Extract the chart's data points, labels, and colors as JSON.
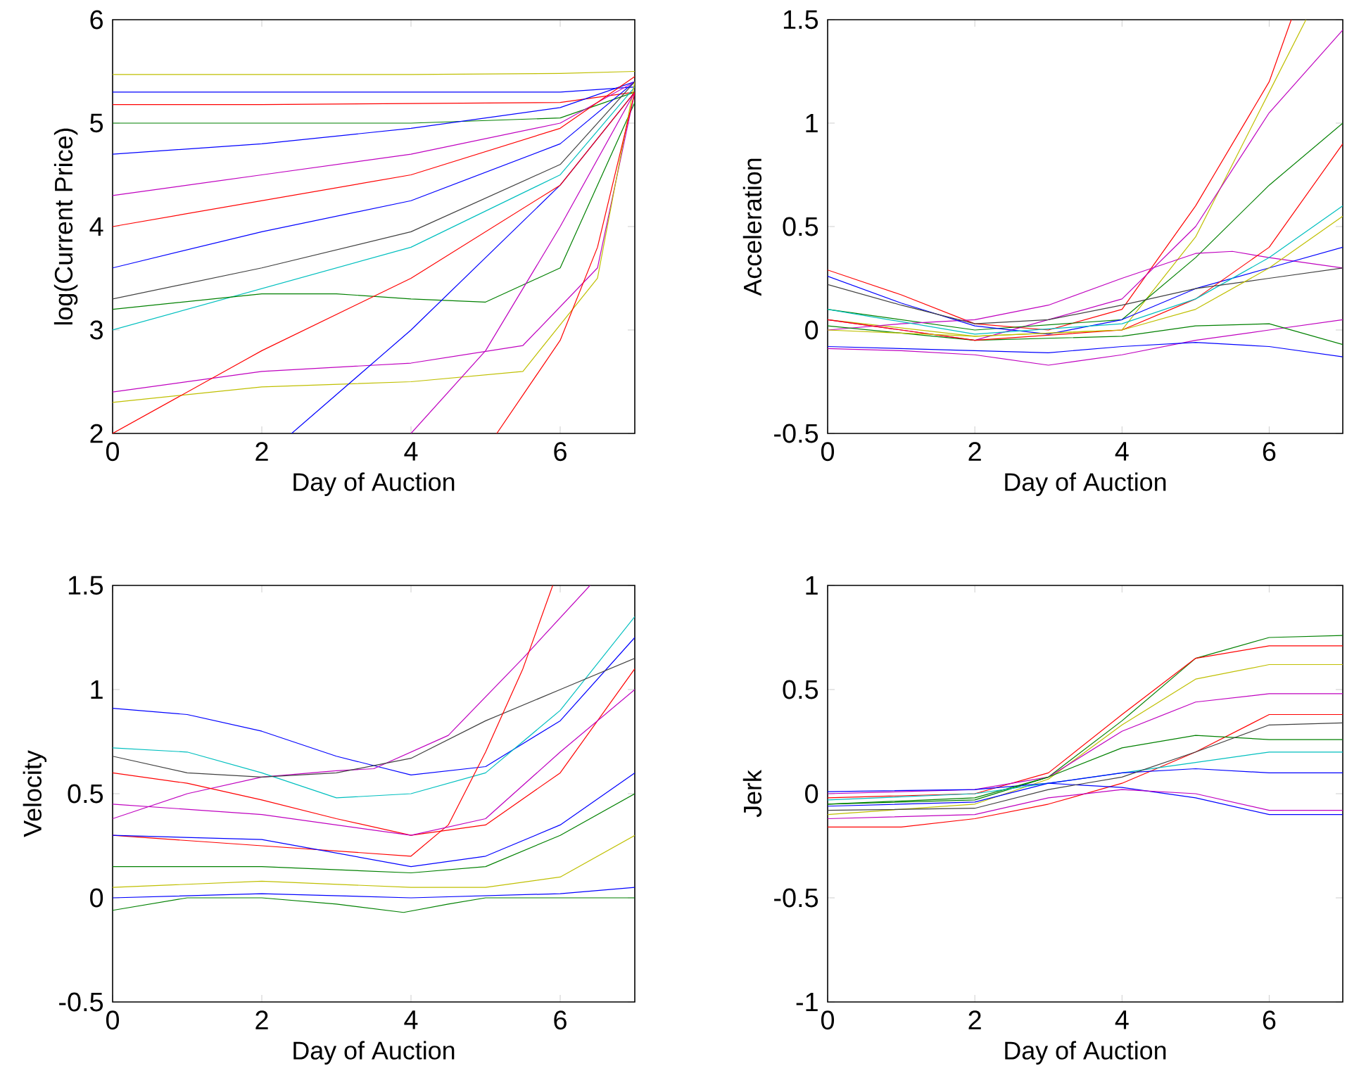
{
  "chart_data": [
    {
      "type": "line",
      "xlabel": "Day of Auction",
      "ylabel": "log(Current Price)",
      "xlim": [
        0,
        7
      ],
      "ylim": [
        2,
        6
      ],
      "xticks": [
        0,
        2,
        4,
        6
      ],
      "yticks": [
        2,
        3,
        4,
        5,
        6
      ],
      "series": [
        {
          "color": "#bfbf00",
          "x": [
            0,
            2,
            4,
            6,
            7
          ],
          "values": [
            5.47,
            5.47,
            5.47,
            5.48,
            5.5
          ]
        },
        {
          "color": "#0000ff",
          "x": [
            0,
            2,
            4,
            6,
            7
          ],
          "values": [
            5.3,
            5.3,
            5.3,
            5.3,
            5.35
          ]
        },
        {
          "color": "#ff0000",
          "x": [
            0,
            2,
            4,
            6,
            7
          ],
          "values": [
            5.18,
            5.18,
            5.19,
            5.2,
            5.3
          ]
        },
        {
          "color": "#008000",
          "x": [
            0,
            2,
            4,
            6,
            7
          ],
          "values": [
            5.0,
            5.0,
            5.0,
            5.05,
            5.3
          ]
        },
        {
          "color": "#0000ff",
          "x": [
            0,
            2,
            4,
            6,
            7
          ],
          "values": [
            4.7,
            4.8,
            4.95,
            5.15,
            5.4
          ]
        },
        {
          "color": "#bf00bf",
          "x": [
            0,
            2,
            4,
            6,
            7
          ],
          "values": [
            4.3,
            4.5,
            4.7,
            5.0,
            5.4
          ]
        },
        {
          "color": "#ff0000",
          "x": [
            0,
            2,
            4,
            6,
            7
          ],
          "values": [
            4.0,
            4.25,
            4.5,
            4.95,
            5.45
          ]
        },
        {
          "color": "#0000ff",
          "x": [
            0,
            2,
            4,
            6,
            7
          ],
          "values": [
            3.6,
            3.95,
            4.25,
            4.8,
            5.4
          ]
        },
        {
          "color": "#404040",
          "x": [
            0,
            2,
            4,
            6,
            7
          ],
          "values": [
            3.3,
            3.6,
            3.95,
            4.6,
            5.4
          ]
        },
        {
          "color": "#00bfbf",
          "x": [
            0,
            2,
            4,
            6,
            7
          ],
          "values": [
            3.0,
            3.4,
            3.8,
            4.5,
            5.35
          ]
        },
        {
          "color": "#008000",
          "x": [
            0,
            2,
            3,
            4,
            5,
            6,
            7
          ],
          "values": [
            3.2,
            3.35,
            3.35,
            3.3,
            3.27,
            3.6,
            5.2
          ]
        },
        {
          "color": "#bf00bf",
          "x": [
            0,
            2,
            4,
            5.5,
            6.5,
            7
          ],
          "values": [
            2.4,
            2.6,
            2.68,
            2.85,
            3.6,
            5.3
          ]
        },
        {
          "color": "#bfbf00",
          "x": [
            0,
            2,
            4,
            5.5,
            6.5,
            7
          ],
          "values": [
            2.3,
            2.45,
            2.5,
            2.6,
            3.5,
            5.4
          ]
        },
        {
          "color": "#ff0000",
          "x": [
            5.15,
            6,
            6.5,
            7
          ],
          "values": [
            2.0,
            2.9,
            3.8,
            5.3
          ]
        },
        {
          "color": "#0000ff",
          "x": [
            2.4,
            4,
            6,
            7
          ],
          "values": [
            2.0,
            3.0,
            4.4,
            5.3
          ]
        },
        {
          "color": "#bf00bf",
          "x": [
            4,
            5,
            6,
            7
          ],
          "values": [
            2.0,
            2.8,
            4.0,
            5.3
          ]
        },
        {
          "color": "#ff0000",
          "x": [
            0,
            2,
            4,
            6,
            7
          ],
          "values": [
            2.0,
            2.8,
            3.5,
            4.4,
            5.3
          ]
        }
      ]
    },
    {
      "type": "line",
      "xlabel": "Day of Auction",
      "ylabel": "Acceleration",
      "xlim": [
        0,
        7
      ],
      "ylim": [
        -0.5,
        1.5
      ],
      "xticks": [
        0,
        2,
        4,
        6
      ],
      "yticks": [
        -0.5,
        0,
        0.5,
        1,
        1.5
      ],
      "series": [
        {
          "color": "#ff0000",
          "x": [
            0,
            1,
            2,
            3,
            4,
            5,
            6,
            6.3
          ],
          "values": [
            0.29,
            0.17,
            0.03,
            0.0,
            0.1,
            0.6,
            1.2,
            1.5
          ]
        },
        {
          "color": "#bfbf00",
          "x": [
            0,
            2,
            4,
            5,
            6,
            6.5
          ],
          "values": [
            0.05,
            -0.03,
            0.0,
            0.45,
            1.15,
            1.5
          ]
        },
        {
          "color": "#bf00bf",
          "x": [
            0,
            2,
            4,
            5,
            6,
            7
          ],
          "values": [
            0.05,
            -0.05,
            0.15,
            0.5,
            1.05,
            1.45
          ]
        },
        {
          "color": "#008000",
          "x": [
            0,
            2,
            4,
            5,
            6,
            7
          ],
          "values": [
            0.1,
            0.0,
            0.05,
            0.35,
            0.7,
            1.0
          ]
        },
        {
          "color": "#bf00bf",
          "x": [
            0,
            1,
            2,
            3,
            4,
            5,
            5.5,
            6,
            7
          ],
          "values": [
            0.0,
            0.03,
            0.05,
            0.12,
            0.25,
            0.37,
            0.38,
            0.35,
            0.3
          ]
        },
        {
          "color": "#0000ff",
          "x": [
            0,
            1,
            2,
            3,
            4,
            5,
            6,
            7
          ],
          "values": [
            0.26,
            0.13,
            0.02,
            -0.02,
            0.05,
            0.2,
            0.3,
            0.4
          ]
        },
        {
          "color": "#bf00bf",
          "x": [
            0,
            1,
            2,
            3,
            4,
            5,
            6,
            7
          ],
          "values": [
            -0.09,
            -0.1,
            -0.12,
            -0.17,
            -0.12,
            -0.05,
            0.0,
            0.05
          ]
        },
        {
          "color": "#0000ff",
          "x": [
            0,
            2,
            3,
            4,
            5,
            6,
            7
          ],
          "values": [
            -0.08,
            -0.1,
            -0.11,
            -0.08,
            -0.06,
            -0.08,
            -0.13
          ]
        },
        {
          "color": "#008000",
          "x": [
            0,
            2,
            4,
            5,
            6,
            7
          ],
          "values": [
            0.02,
            -0.05,
            -0.03,
            0.02,
            0.03,
            -0.07
          ]
        },
        {
          "color": "#ff0000",
          "x": [
            0,
            2,
            4,
            5,
            6,
            7
          ],
          "values": [
            0.05,
            -0.05,
            0.0,
            0.15,
            0.4,
            0.9
          ]
        },
        {
          "color": "#00bfbf",
          "x": [
            0,
            2,
            4,
            5,
            6,
            7
          ],
          "values": [
            0.1,
            -0.02,
            0.03,
            0.15,
            0.35,
            0.6
          ]
        },
        {
          "color": "#404040",
          "x": [
            0,
            1,
            2,
            3,
            4,
            5,
            6,
            7
          ],
          "values": [
            0.22,
            0.12,
            0.03,
            0.05,
            0.12,
            0.2,
            0.25,
            0.3
          ]
        },
        {
          "color": "#bfbf00",
          "x": [
            0,
            2,
            4,
            5,
            6,
            7
          ],
          "values": [
            0.0,
            -0.03,
            0.0,
            0.1,
            0.3,
            0.55
          ]
        }
      ]
    },
    {
      "type": "line",
      "xlabel": "Day of Auction",
      "ylabel": "Velocity",
      "xlim": [
        0,
        7
      ],
      "ylim": [
        -0.5,
        1.5
      ],
      "xticks": [
        0,
        2,
        4,
        6
      ],
      "yticks": [
        -0.5,
        0,
        0.5,
        1,
        1.5
      ],
      "series": [
        {
          "color": "#0000ff",
          "x": [
            0,
            1,
            2,
            3,
            4,
            5,
            6,
            7
          ],
          "values": [
            0.91,
            0.88,
            0.8,
            0.68,
            0.59,
            0.63,
            0.85,
            1.25
          ]
        },
        {
          "color": "#bf00bf",
          "x": [
            0,
            1,
            2,
            3,
            3.5,
            4.5,
            5.5,
            6.4
          ],
          "values": [
            0.38,
            0.5,
            0.58,
            0.61,
            0.62,
            0.78,
            1.15,
            1.5
          ]
        },
        {
          "color": "#00bfbf",
          "x": [
            0,
            1,
            2,
            3,
            4,
            5,
            6,
            7
          ],
          "values": [
            0.72,
            0.7,
            0.6,
            0.48,
            0.5,
            0.6,
            0.9,
            1.35
          ]
        },
        {
          "color": "#404040",
          "x": [
            0,
            1,
            2,
            3,
            4,
            5,
            6,
            7
          ],
          "values": [
            0.68,
            0.6,
            0.58,
            0.6,
            0.67,
            0.85,
            1.0,
            1.15
          ]
        },
        {
          "color": "#ff0000",
          "x": [
            0,
            1,
            2,
            3,
            4,
            5,
            6,
            7
          ],
          "values": [
            0.6,
            0.55,
            0.47,
            0.38,
            0.3,
            0.35,
            0.6,
            1.1
          ]
        },
        {
          "color": "#ff0000",
          "x": [
            0,
            2,
            4,
            4.5,
            5,
            5.5,
            5.9
          ],
          "values": [
            0.3,
            0.25,
            0.2,
            0.35,
            0.7,
            1.1,
            1.5
          ]
        },
        {
          "color": "#008000",
          "x": [
            0,
            1,
            2,
            3,
            3.9,
            4.5,
            5,
            6,
            7
          ],
          "values": [
            -0.06,
            0.0,
            0.0,
            -0.03,
            -0.07,
            -0.03,
            0.0,
            0.0,
            0.0
          ]
        },
        {
          "color": "#0000ff",
          "x": [
            0,
            2,
            4,
            5,
            6,
            7
          ],
          "values": [
            0.3,
            0.28,
            0.15,
            0.2,
            0.35,
            0.6
          ]
        },
        {
          "color": "#008000",
          "x": [
            0,
            2,
            4,
            5,
            6,
            7
          ],
          "values": [
            0.15,
            0.15,
            0.12,
            0.15,
            0.3,
            0.5
          ]
        },
        {
          "color": "#bfbf00",
          "x": [
            0,
            2,
            4,
            5,
            6,
            7
          ],
          "values": [
            0.05,
            0.08,
            0.05,
            0.05,
            0.1,
            0.3
          ]
        },
        {
          "color": "#bf00bf",
          "x": [
            0,
            2,
            4,
            5,
            6,
            7
          ],
          "values": [
            0.45,
            0.4,
            0.3,
            0.38,
            0.7,
            1.0
          ]
        },
        {
          "color": "#0000ff",
          "x": [
            0,
            2,
            4,
            6,
            7
          ],
          "values": [
            0.0,
            0.02,
            0.0,
            0.02,
            0.05
          ]
        }
      ]
    },
    {
      "type": "line",
      "xlabel": "Day of Auction",
      "ylabel": "Jerk",
      "xlim": [
        0,
        7
      ],
      "ylim": [
        -1,
        1
      ],
      "xticks": [
        0,
        2,
        4,
        6
      ],
      "yticks": [
        -1,
        -0.5,
        0,
        0.5,
        1
      ],
      "series": [
        {
          "color": "#008000",
          "x": [
            0,
            2,
            3,
            4,
            5,
            6,
            7
          ],
          "values": [
            -0.05,
            -0.03,
            0.08,
            0.35,
            0.65,
            0.75,
            0.76
          ]
        },
        {
          "color": "#ff0000",
          "x": [
            0,
            2,
            3,
            4,
            5,
            6,
            7
          ],
          "values": [
            -0.02,
            0.0,
            0.1,
            0.38,
            0.65,
            0.71,
            0.71
          ]
        },
        {
          "color": "#bfbf00",
          "x": [
            0,
            2,
            3,
            4,
            5,
            6,
            7
          ],
          "values": [
            -0.1,
            -0.05,
            0.07,
            0.33,
            0.55,
            0.62,
            0.62
          ]
        },
        {
          "color": "#bf00bf",
          "x": [
            0,
            2,
            3,
            4,
            5,
            6,
            7
          ],
          "values": [
            0.0,
            0.02,
            0.08,
            0.3,
            0.44,
            0.48,
            0.48
          ]
        },
        {
          "color": "#ff0000",
          "x": [
            0,
            1,
            2,
            3,
            4,
            5,
            6,
            7
          ],
          "values": [
            -0.16,
            -0.16,
            -0.12,
            -0.05,
            0.05,
            0.2,
            0.38,
            0.38
          ]
        },
        {
          "color": "#0000ff",
          "x": [
            0,
            2,
            3,
            4,
            5,
            6,
            7
          ],
          "values": [
            0.01,
            0.02,
            0.05,
            0.03,
            -0.02,
            -0.1,
            -0.1
          ]
        },
        {
          "color": "#008000",
          "x": [
            0,
            2,
            3,
            4,
            5,
            6,
            7
          ],
          "values": [
            -0.05,
            -0.02,
            0.08,
            0.22,
            0.28,
            0.26,
            0.26
          ]
        },
        {
          "color": "#00bfbf",
          "x": [
            0,
            2,
            3,
            4,
            5,
            6,
            7
          ],
          "values": [
            -0.03,
            0.0,
            0.05,
            0.1,
            0.15,
            0.2,
            0.2
          ]
        },
        {
          "color": "#0000ff",
          "x": [
            0,
            2,
            3,
            4,
            5,
            6,
            7
          ],
          "values": [
            -0.06,
            -0.04,
            0.05,
            0.1,
            0.12,
            0.1,
            0.1
          ]
        },
        {
          "color": "#404040",
          "x": [
            0,
            2,
            3,
            4,
            5,
            6,
            7
          ],
          "values": [
            -0.08,
            -0.07,
            0.02,
            0.08,
            0.2,
            0.33,
            0.34
          ]
        },
        {
          "color": "#bf00bf",
          "x": [
            0,
            2,
            3,
            4,
            5,
            6,
            7
          ],
          "values": [
            -0.12,
            -0.1,
            -0.02,
            0.02,
            0.0,
            -0.08,
            -0.08
          ]
        }
      ]
    }
  ]
}
